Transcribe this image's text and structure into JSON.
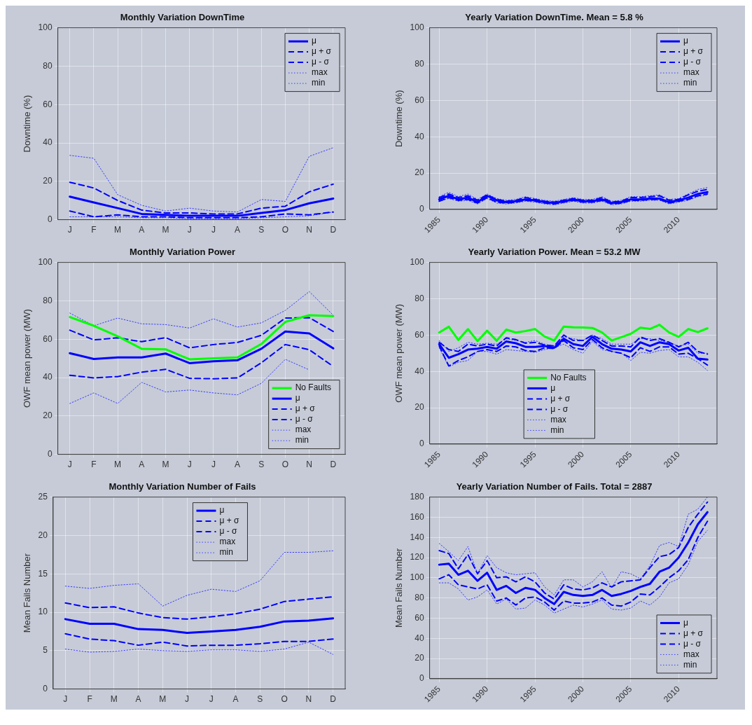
{
  "chart_data": [
    {
      "type": "line",
      "title": "Monthly Variation DownTime",
      "ylabel": "Downtime (%)",
      "categories": [
        "J",
        "F",
        "M",
        "A",
        "M",
        "J",
        "J",
        "A",
        "S",
        "O",
        "N",
        "D"
      ],
      "ylim": [
        0,
        100
      ],
      "yticks": [
        0,
        20,
        40,
        60,
        80,
        100
      ],
      "grid": true,
      "legend": "top right",
      "series": [
        {
          "name": "μ",
          "color": "#0000ff",
          "line_style": "solid",
          "values": [
            12,
            9,
            6,
            3,
            2.5,
            2,
            2,
            2,
            3.5,
            5,
            8.5,
            11
          ]
        },
        {
          "name": "μ + σ",
          "color": "#0000ff",
          "line_style": "dashed",
          "values": [
            19.5,
            16.5,
            10,
            5,
            3.5,
            3.5,
            3,
            3,
            6,
            7,
            14.5,
            18.5
          ]
        },
        {
          "name": "μ - σ",
          "color": "#0000ff",
          "line_style": "dashed",
          "values": [
            4.5,
            1.5,
            2.5,
            1.5,
            1.5,
            1,
            1,
            1,
            1.5,
            3,
            2.5,
            4
          ]
        },
        {
          "name": "max",
          "color": "#3c3cff",
          "line_style": "dotted",
          "values": [
            33.5,
            32,
            13,
            7.5,
            4.5,
            6,
            4.5,
            4,
            10.5,
            9.5,
            33,
            37.5
          ]
        },
        {
          "name": "min",
          "color": "#3c3cff",
          "line_style": "dotted",
          "values": [
            1.5,
            1.5,
            1.5,
            1,
            1,
            0.5,
            0.5,
            0.5,
            1,
            1.5,
            2,
            4
          ]
        }
      ]
    },
    {
      "type": "line",
      "title": "Yearly Variation DownTime. Mean = 5.8 %",
      "ylabel": "Downtime (%)",
      "x": [
        1985,
        1986,
        1987,
        1988,
        1989,
        1990,
        1991,
        1992,
        1993,
        1994,
        1995,
        1996,
        1997,
        1998,
        1999,
        2000,
        2001,
        2002,
        2003,
        2004,
        2005,
        2006,
        2007,
        2008,
        2009,
        2010,
        2011,
        2012,
        2013
      ],
      "xlim": [
        1984,
        2014
      ],
      "xticks": [
        1985,
        1990,
        1995,
        2000,
        2005,
        2010
      ],
      "ylim": [
        0,
        100
      ],
      "yticks": [
        0,
        20,
        40,
        60,
        80,
        100
      ],
      "grid": true,
      "legend": "top right",
      "series": [
        {
          "name": "μ",
          "color": "#0000ff",
          "line_style": "solid",
          "values": [
            5.5,
            7.5,
            5.5,
            6.5,
            4,
            7.5,
            5,
            4,
            4.5,
            5.5,
            5,
            4,
            3.5,
            4.5,
            5.5,
            4.5,
            4.5,
            5.5,
            3.5,
            4,
            5.5,
            5.5,
            6,
            6,
            4,
            5,
            6.5,
            8.5,
            9.5
          ]
        },
        {
          "name": "μ + σ",
          "color": "#0000ff",
          "line_style": "dashed",
          "values": [
            6.5,
            8.5,
            6.5,
            7.5,
            5,
            8,
            5.5,
            4.5,
            5,
            6.5,
            5.5,
            4.5,
            4,
            5,
            6,
            5,
            5,
            6.5,
            4,
            4.5,
            6.5,
            6.5,
            7,
            7.5,
            5,
            5.5,
            8,
            10,
            11
          ]
        },
        {
          "name": "μ - σ",
          "color": "#0000ff",
          "line_style": "dashed",
          "values": [
            4.5,
            6.5,
            5,
            5.5,
            3.5,
            6.5,
            4,
            3.5,
            4,
            5,
            4.5,
            3.5,
            3,
            4,
            5,
            4,
            4,
            5,
            3,
            3.5,
            5,
            5,
            5.5,
            5.5,
            3.5,
            4.5,
            5.5,
            7.5,
            8.5
          ]
        },
        {
          "name": "max",
          "color": "#3c3cff",
          "line_style": "dotted",
          "values": [
            7,
            9.5,
            7,
            8.5,
            5.5,
            8.5,
            6,
            5,
            5.5,
            7,
            6,
            5,
            4.5,
            5.5,
            6.5,
            5.5,
            5.5,
            7,
            4.5,
            5,
            7,
            7,
            7.5,
            8,
            5.5,
            6,
            8.5,
            11,
            12
          ]
        },
        {
          "name": "min",
          "color": "#3c3cff",
          "line_style": "dotted",
          "values": [
            4.5,
            6,
            4.5,
            5,
            3,
            6,
            3.5,
            3,
            3.5,
            4.5,
            4,
            3,
            2.5,
            3.5,
            4.5,
            3.5,
            3.5,
            4.5,
            2.5,
            3,
            4.5,
            4.5,
            5,
            5,
            3,
            4,
            5,
            7,
            8
          ]
        }
      ]
    },
    {
      "type": "line",
      "title": "Monthly Variation Power",
      "ylabel": "OWF mean power (MW)",
      "categories": [
        "J",
        "F",
        "M",
        "A",
        "M",
        "J",
        "J",
        "A",
        "S",
        "O",
        "N",
        "D"
      ],
      "ylim": [
        0,
        100
      ],
      "yticks": [
        0,
        20,
        40,
        60,
        80,
        100
      ],
      "grid": true,
      "legend": "bottom right",
      "series": [
        {
          "name": "No Faults",
          "color": "#00ff00",
          "line_style": "solid",
          "values": [
            71.5,
            67,
            61.5,
            55,
            54.7,
            49.5,
            50,
            50.5,
            57.5,
            69,
            72.5,
            72
          ]
        },
        {
          "name": "μ",
          "color": "#0000ff",
          "line_style": "solid",
          "values": [
            52.7,
            49.7,
            50.5,
            50.5,
            52.5,
            47.5,
            48.5,
            49,
            55,
            64,
            63,
            55.2
          ]
        },
        {
          "name": "μ + σ",
          "color": "#0000ff",
          "line_style": "dashed",
          "values": [
            64.7,
            59.6,
            60.7,
            58.7,
            60.8,
            55.5,
            57.2,
            58.3,
            62,
            71,
            71.2,
            64
          ]
        },
        {
          "name": "μ - σ",
          "color": "#0000ff",
          "line_style": "dashed",
          "values": [
            41.2,
            39.8,
            40.5,
            42.8,
            44.3,
            39.6,
            39.4,
            39.8,
            47.7,
            57.2,
            54.5,
            45.8
          ]
        },
        {
          "name": "max",
          "color": "#3c3cff",
          "line_style": "dotted",
          "values": [
            73.6,
            67,
            71,
            68,
            67.6,
            65.8,
            70.6,
            66.3,
            68.5,
            75,
            84.8,
            72.5
          ]
        },
        {
          "name": "min",
          "color": "#3c3cff",
          "line_style": "dotted",
          "values": [
            26.5,
            32,
            26.5,
            37.5,
            32.5,
            33.5,
            32,
            31,
            37,
            49.5,
            44,
            null
          ]
        }
      ]
    },
    {
      "type": "line",
      "title": "Yearly Variation Power. Mean = 53.2 MW",
      "ylabel": "OWF mean power (MW)",
      "x": [
        1985,
        1986,
        1987,
        1988,
        1989,
        1990,
        1991,
        1992,
        1993,
        1994,
        1995,
        1996,
        1997,
        1998,
        1999,
        2000,
        2001,
        2002,
        2003,
        2004,
        2005,
        2006,
        2007,
        2008,
        2009,
        2010,
        2011,
        2012,
        2013
      ],
      "xlim": [
        1984,
        2014
      ],
      "xticks": [
        1985,
        1990,
        1995,
        2000,
        2005,
        2010
      ],
      "ylim": [
        0,
        100
      ],
      "yticks": [
        0,
        20,
        40,
        60,
        80,
        100
      ],
      "grid": true,
      "legend": "bottom",
      "series": [
        {
          "name": "No Faults",
          "color": "#00ff00",
          "line_style": "solid",
          "values": [
            61.4,
            64.6,
            57.3,
            63.3,
            56.7,
            62.4,
            56.9,
            63,
            61.4,
            62.2,
            63.3,
            59.2,
            57,
            64.7,
            64.3,
            64.2,
            63.9,
            61.4,
            57,
            58.8,
            60.7,
            64.1,
            63.4,
            65.7,
            61.4,
            59,
            63.3,
            61.6,
            63.7
          ]
        },
        {
          "name": "μ",
          "color": "#0000ff",
          "line_style": "solid",
          "values": [
            55,
            47.5,
            49.5,
            52,
            52.5,
            53.5,
            52.5,
            56.5,
            55.5,
            53.5,
            53.5,
            54,
            53,
            58,
            55,
            54,
            59,
            55,
            52.5,
            52,
            51,
            56,
            54,
            56,
            55,
            51.5,
            53,
            47,
            46.5
          ]
        },
        {
          "name": "μ + σ",
          "color": "#0000ff",
          "line_style": "dashed",
          "values": [
            56,
            52,
            51,
            55,
            54,
            55,
            54,
            58.5,
            57.5,
            55.5,
            56,
            54.5,
            54,
            60,
            57,
            57,
            60,
            57,
            54,
            54,
            53.5,
            59,
            57,
            58,
            56,
            53.5,
            56,
            51,
            49.5
          ]
        },
        {
          "name": "μ - σ",
          "color": "#0000ff",
          "line_style": "dashed",
          "values": [
            54,
            43,
            46,
            48,
            51,
            52,
            51,
            54,
            53.5,
            51.5,
            51,
            53,
            52.5,
            57,
            53,
            52,
            57.5,
            53,
            51,
            50,
            47.5,
            53,
            51,
            53.5,
            53.5,
            49.5,
            50,
            47,
            43.5
          ]
        },
        {
          "name": "max",
          "color": "#3c3cff",
          "line_style": "dotted",
          "values": [
            57,
            51,
            53,
            56,
            55,
            55.5,
            55,
            58,
            57,
            56,
            57,
            55,
            54,
            59,
            58,
            57,
            60,
            58,
            55,
            55,
            55,
            58,
            58,
            57,
            56,
            54,
            55,
            50,
            50
          ]
        },
        {
          "name": "min",
          "color": "#3c3cff",
          "line_style": "dotted",
          "values": [
            53,
            42.5,
            45,
            46,
            51,
            51,
            49.5,
            52,
            51.5,
            51,
            50.5,
            52,
            53,
            55,
            52,
            50,
            56.5,
            52,
            51,
            50,
            46,
            50.5,
            50,
            51.5,
            52,
            48,
            48,
            45,
            40.5
          ]
        }
      ]
    },
    {
      "type": "line",
      "title": "Monthly Variation Number of Fails",
      "ylabel": "Mean Fails Number",
      "categories": [
        "J",
        "F",
        "M",
        "A",
        "M",
        "J",
        "J",
        "A",
        "S",
        "O",
        "N",
        "D"
      ],
      "ylim": [
        0,
        25
      ],
      "yticks": [
        0,
        5,
        10,
        15,
        20,
        25
      ],
      "grid": true,
      "legend": "top",
      "series": [
        {
          "name": "μ",
          "color": "#0000ff",
          "line_style": "solid",
          "values": [
            9.1,
            8.5,
            8.5,
            7.8,
            7.7,
            7.3,
            7.5,
            7.7,
            8.1,
            8.8,
            8.9,
            9.2
          ]
        },
        {
          "name": "μ + σ",
          "color": "#0000ff",
          "line_style": "dashed",
          "values": [
            11.2,
            10.6,
            10.7,
            9.9,
            9.3,
            9.1,
            9.4,
            9.8,
            10.4,
            11.4,
            11.7,
            12
          ]
        },
        {
          "name": "μ - σ",
          "color": "#0000ff",
          "line_style": "dashed",
          "values": [
            7.2,
            6.5,
            6.3,
            5.7,
            6.1,
            5.6,
            5.7,
            5.7,
            5.9,
            6.2,
            6.2,
            6.5
          ]
        },
        {
          "name": "max",
          "color": "#3c3cff",
          "line_style": "dotted",
          "values": [
            13.4,
            13.1,
            13.5,
            13.7,
            10.8,
            12.2,
            13,
            12.7,
            14.1,
            17.8,
            17.8,
            18
          ]
        },
        {
          "name": "min",
          "color": "#3c3cff",
          "line_style": "dotted",
          "values": [
            5.2,
            4.8,
            4.9,
            5.2,
            5,
            4.9,
            5.1,
            5.1,
            4.9,
            5.2,
            6.1,
            4.5
          ]
        }
      ]
    },
    {
      "type": "line",
      "title": "Yearly Variation Number of Fails. Total = 2887",
      "ylabel": "Mean Fails Number",
      "x": [
        1985,
        1986,
        1987,
        1988,
        1989,
        1990,
        1991,
        1992,
        1993,
        1994,
        1995,
        1996,
        1997,
        1998,
        1999,
        2000,
        2001,
        2002,
        2003,
        2004,
        2005,
        2006,
        2007,
        2008,
        2009,
        2010,
        2011,
        2012,
        2013
      ],
      "xlim": [
        1984,
        2014
      ],
      "xticks": [
        1985,
        1990,
        1995,
        2000,
        2005,
        2010
      ],
      "ylim": [
        0,
        180
      ],
      "yticks": [
        0,
        20,
        40,
        60,
        80,
        100,
        120,
        140,
        160,
        180
      ],
      "grid": true,
      "legend": "bottom right",
      "series": [
        {
          "name": "μ",
          "color": "#0000ff",
          "line_style": "solid",
          "values": [
            113,
            114,
            103,
            107,
            97,
            105,
            88,
            92,
            85,
            90,
            88,
            80,
            74,
            86,
            83,
            82,
            83,
            88,
            82,
            84,
            87,
            91,
            94,
            106,
            110,
            120,
            135,
            153,
            165
          ]
        },
        {
          "name": "μ + σ",
          "color": "#0000ff",
          "line_style": "dashed",
          "values": [
            127,
            124,
            109,
            123,
            104,
            117,
            100,
            101,
            96,
            101,
            96,
            85,
            79,
            93,
            89,
            88,
            90,
            95,
            91,
            96,
            97,
            98,
            110,
            121,
            123,
            130,
            150,
            163,
            175
          ]
        },
        {
          "name": "μ - σ",
          "color": "#0000ff",
          "line_style": "dashed",
          "values": [
            99,
            103,
            93,
            91,
            89,
            93,
            77,
            80,
            73,
            80,
            81,
            76,
            68,
            77,
            75,
            75,
            76,
            80,
            73,
            72,
            76,
            84,
            83,
            91,
            100,
            107,
            118,
            140,
            156
          ]
        },
        {
          "name": "max",
          "color": "#3c3cff",
          "line_style": "dotted",
          "values": [
            134,
            126,
            117,
            131,
            104,
            122,
            110,
            105,
            103,
            104,
            105,
            91,
            83,
            98,
            98,
            91,
            96,
            106,
            90,
            106,
            104,
            99,
            112,
            132,
            135,
            131,
            163,
            168,
            180
          ]
        },
        {
          "name": "min",
          "color": "#3c3cff",
          "line_style": "dotted",
          "values": [
            95,
            95,
            89,
            78,
            81,
            88,
            74,
            79,
            69,
            70,
            78,
            73,
            65,
            69,
            73,
            71,
            74,
            78,
            69,
            68,
            70,
            77,
            73,
            81,
            95,
            99,
            113,
            136,
            147
          ]
        }
      ]
    }
  ]
}
